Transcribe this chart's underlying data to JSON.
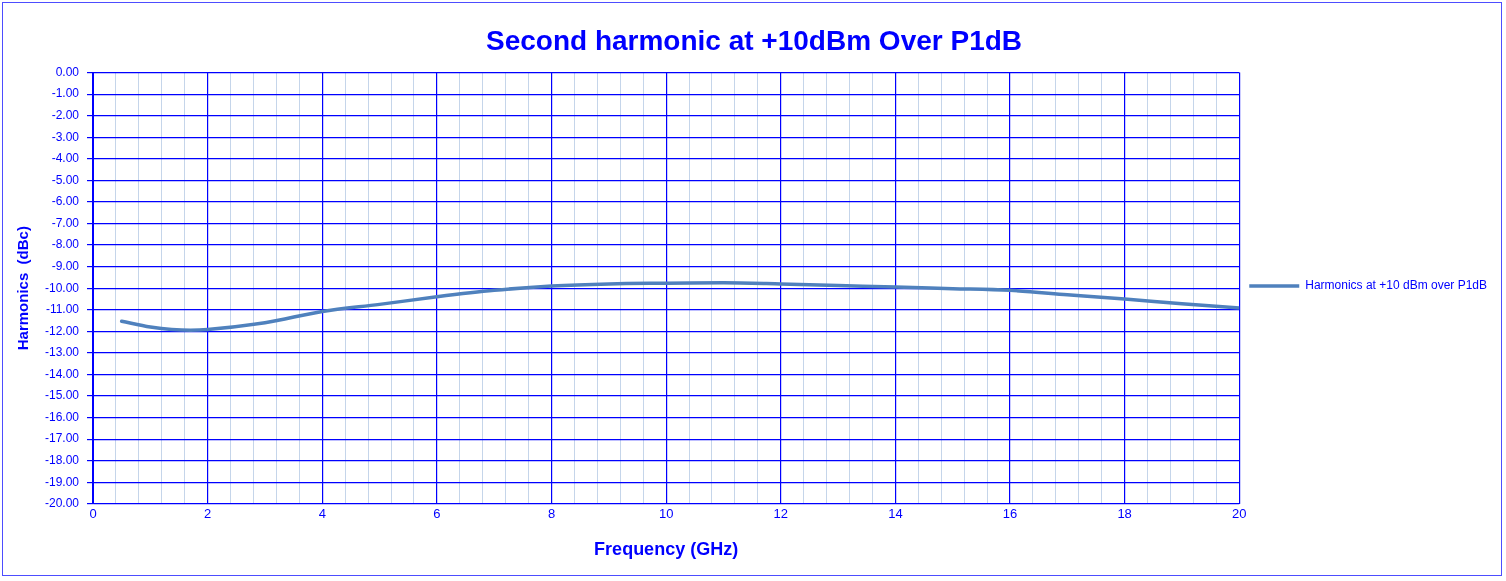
{
  "chart_data": {
    "type": "line",
    "title": "Second harmonic at +10dBm Over P1dB",
    "xlabel": "Frequency (GHz)",
    "ylabel": "Harmonics  (dBc)",
    "series": [
      {
        "name": "Harmonics at +10 dBm over P1dB",
        "color": "#4f81bd",
        "x": [
          0.5,
          1,
          1.7,
          2,
          3,
          4,
          5,
          6,
          7,
          8,
          9,
          10,
          11,
          12,
          13,
          14,
          15,
          16,
          17,
          18,
          19,
          20
        ],
        "values": [
          -11.53,
          -11.8,
          -11.95,
          -11.92,
          -11.6,
          -11.08,
          -10.75,
          -10.4,
          -10.1,
          -9.9,
          -9.8,
          -9.77,
          -9.75,
          -9.8,
          -9.87,
          -9.95,
          -10.02,
          -10.1,
          -10.3,
          -10.5,
          -10.72,
          -10.92
        ]
      }
    ],
    "xlim": [
      0,
      20
    ],
    "xticks": [
      0,
      {
        "value": 0.4,
        "label": null
      },
      {
        "value": 0.8,
        "label": null
      },
      {
        "value": 1.2,
        "label": null
      },
      {
        "value": 1.6,
        "label": null
      },
      2,
      {
        "value": 2.4,
        "label": null
      },
      {
        "value": 2.8,
        "label": null
      },
      {
        "value": 3.2,
        "label": null
      },
      {
        "value": 3.6,
        "label": null
      },
      4,
      {
        "value": 4.4,
        "label": null
      },
      {
        "value": 4.8,
        "label": null
      },
      {
        "value": 5.2,
        "label": null
      },
      {
        "value": 5.6,
        "label": null
      },
      6,
      {
        "value": 6.4,
        "label": null
      },
      {
        "value": 6.8,
        "label": null
      },
      {
        "value": 7.2,
        "label": null
      },
      {
        "value": 7.6,
        "label": null
      },
      8,
      {
        "value": 8.4,
        "label": null
      },
      {
        "value": 8.8,
        "label": null
      },
      {
        "value": 9.2,
        "label": null
      },
      {
        "value": 9.6,
        "label": null
      },
      10,
      {
        "value": 10.4,
        "label": null
      },
      {
        "value": 10.8,
        "label": null
      },
      {
        "value": 11.2,
        "label": null
      },
      {
        "value": 11.6,
        "label": null
      },
      12,
      {
        "value": 12.4,
        "label": null
      },
      {
        "value": 12.8,
        "label": null
      },
      {
        "value": 13.2,
        "label": null
      },
      {
        "value": 13.6,
        "label": null
      },
      14,
      {
        "value": 14.4,
        "label": null
      },
      {
        "value": 14.8,
        "label": null
      },
      {
        "value": 15.2,
        "label": null
      },
      {
        "value": 15.6,
        "label": null
      },
      16,
      {
        "value": 16.4,
        "label": null
      },
      {
        "value": 16.8,
        "label": null
      },
      {
        "value": 17.2,
        "label": null
      },
      {
        "value": 17.6,
        "label": null
      },
      18,
      {
        "value": 18.4,
        "label": null
      },
      {
        "value": 18.8,
        "label": null
      },
      {
        "value": 19.2,
        "label": null
      },
      {
        "value": 19.6,
        "label": null
      },
      20
    ],
    "ylim": [
      -20,
      0
    ],
    "yticks": [
      {
        "value": 0,
        "label": "0.00"
      },
      {
        "value": -1,
        "label": "-1.00"
      },
      {
        "value": -2,
        "label": "-2.00"
      },
      {
        "value": -3,
        "label": "-3.00"
      },
      {
        "value": -4,
        "label": "-4.00"
      },
      {
        "value": -5,
        "label": "-5.00"
      },
      {
        "value": -6,
        "label": "-6.00"
      },
      {
        "value": -7,
        "label": "-7.00"
      },
      {
        "value": -8,
        "label": "-8.00"
      },
      {
        "value": -9,
        "label": "-9.00"
      },
      {
        "value": -10,
        "label": "-10.00"
      },
      {
        "value": -11,
        "label": "-11.00"
      },
      {
        "value": -12,
        "label": "-12.00"
      },
      {
        "value": -13,
        "label": "-13.00"
      },
      {
        "value": -14,
        "label": "-14.00"
      },
      {
        "value": -15,
        "label": "-15.00"
      },
      {
        "value": -16,
        "label": "-16.00"
      },
      {
        "value": -17,
        "label": "-17.00"
      },
      {
        "value": -18,
        "label": "-18.00"
      },
      {
        "value": -19,
        "label": "-19.00"
      },
      {
        "value": -20,
        "label": "-20.00"
      }
    ],
    "grid": true,
    "legend": "right",
    "marker": "none",
    "line_style": "solid"
  }
}
